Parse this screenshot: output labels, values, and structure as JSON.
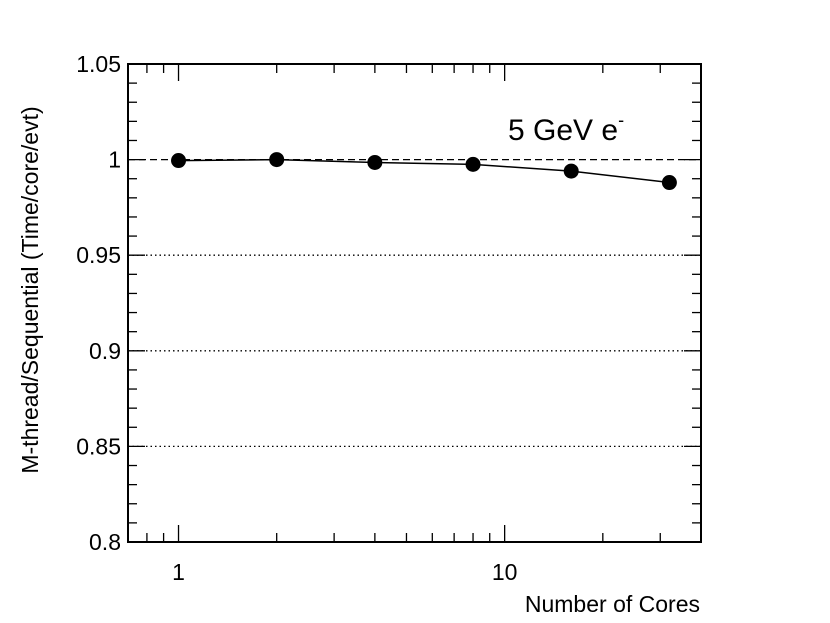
{
  "chart_data": {
    "type": "line",
    "xscale": "log",
    "x": [
      1,
      2,
      4,
      8,
      16,
      32
    ],
    "series": [
      {
        "name": "5 GeV e-",
        "values": [
          0.9995,
          1.0,
          0.9985,
          0.9975,
          0.994,
          0.988
        ]
      }
    ],
    "xlim": [
      0.7,
      40
    ],
    "ylim": [
      0.8,
      1.05
    ],
    "xlabel": "Number of Cores",
    "ylabel": "M-thread/Sequential (Time/core/evt)",
    "xticks": [
      {
        "value": 1,
        "label": "1"
      },
      {
        "value": 10,
        "label": "10"
      }
    ],
    "yticks": [
      {
        "value": 0.8,
        "label": "0.8"
      },
      {
        "value": 0.85,
        "label": "0.85"
      },
      {
        "value": 0.9,
        "label": "0.9"
      },
      {
        "value": 0.95,
        "label": "0.95"
      },
      {
        "value": 1.0,
        "label": "1"
      },
      {
        "value": 1.05,
        "label": "1.05"
      }
    ],
    "reference_lines": [
      {
        "y": 1.0,
        "style": "dashed"
      },
      {
        "y": 0.95,
        "style": "dotted"
      },
      {
        "y": 0.9,
        "style": "dotted"
      },
      {
        "y": 0.85,
        "style": "dotted"
      }
    ],
    "annotation": {
      "text": "5 GeV e",
      "superscript": "-"
    }
  }
}
